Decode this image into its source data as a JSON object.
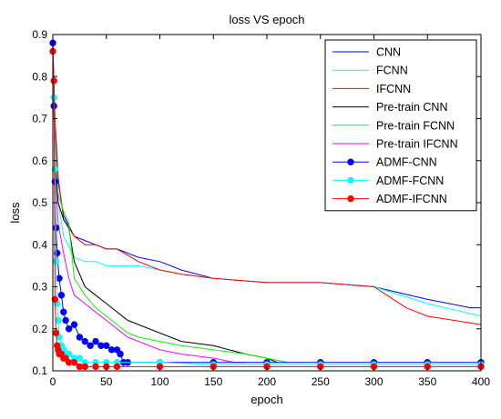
{
  "chart_data": {
    "type": "line",
    "title": "loss VS epoch",
    "xlabel": "epoch",
    "ylabel": "loss",
    "xlim": [
      0,
      400
    ],
    "ylim": [
      0.1,
      0.9
    ],
    "xticks": [
      0,
      50,
      100,
      150,
      200,
      250,
      300,
      350,
      400
    ],
    "yticks": [
      0.1,
      0.2,
      0.3,
      0.4,
      0.5,
      0.6,
      0.7,
      0.8,
      0.9
    ],
    "grid": false,
    "legend_position": "top-right",
    "series": [
      {
        "name": "CNN",
        "color": "#0000ff",
        "marker": "none",
        "x": [
          0,
          2,
          5,
          10,
          20,
          30,
          40,
          50,
          60,
          80,
          100,
          120,
          150,
          200,
          250,
          300,
          350,
          390,
          400
        ],
        "y": [
          0.88,
          0.68,
          0.55,
          0.47,
          0.42,
          0.41,
          0.4,
          0.39,
          0.39,
          0.37,
          0.36,
          0.34,
          0.32,
          0.31,
          0.31,
          0.3,
          0.27,
          0.25,
          0.25
        ]
      },
      {
        "name": "FCNN",
        "color": "#00ffff",
        "marker": "none",
        "x": [
          0,
          2,
          5,
          10,
          20,
          30,
          40,
          50,
          60,
          80,
          100,
          120,
          150,
          200,
          250,
          300,
          350,
          400
        ],
        "y": [
          0.87,
          0.62,
          0.5,
          0.42,
          0.37,
          0.36,
          0.36,
          0.35,
          0.35,
          0.35,
          0.34,
          0.33,
          0.32,
          0.31,
          0.31,
          0.3,
          0.26,
          0.23
        ]
      },
      {
        "name": "IFCNN",
        "color": "#ff0000",
        "marker": "none",
        "x": [
          0,
          2,
          5,
          10,
          20,
          30,
          40,
          50,
          60,
          80,
          100,
          120,
          150,
          200,
          250,
          300,
          330,
          350,
          400
        ],
        "y": [
          0.87,
          0.7,
          0.56,
          0.46,
          0.42,
          0.4,
          0.4,
          0.39,
          0.39,
          0.36,
          0.34,
          0.33,
          0.32,
          0.31,
          0.31,
          0.3,
          0.25,
          0.23,
          0.21
        ]
      },
      {
        "name": "Pre-train CNN",
        "color": "#000000",
        "marker": "none",
        "x": [
          0,
          2,
          5,
          10,
          15,
          20,
          30,
          40,
          50,
          60,
          70,
          80,
          100,
          120,
          150,
          180,
          200,
          210
        ],
        "y": [
          0.88,
          0.6,
          0.5,
          0.46,
          0.44,
          0.36,
          0.3,
          0.28,
          0.26,
          0.24,
          0.22,
          0.21,
          0.19,
          0.17,
          0.16,
          0.14,
          0.13,
          0.12
        ]
      },
      {
        "name": "Pre-train FCNN",
        "color": "#00ff00",
        "marker": "none",
        "x": [
          0,
          2,
          5,
          10,
          15,
          20,
          30,
          40,
          50,
          60,
          70,
          80,
          100,
          120,
          150,
          180,
          200,
          220
        ],
        "y": [
          0.89,
          0.62,
          0.52,
          0.48,
          0.45,
          0.32,
          0.28,
          0.25,
          0.23,
          0.21,
          0.19,
          0.18,
          0.17,
          0.16,
          0.15,
          0.14,
          0.13,
          0.12
        ]
      },
      {
        "name": "Pre-train IFCNN",
        "color": "#ff00ff",
        "marker": "none",
        "x": [
          0,
          2,
          5,
          10,
          15,
          20,
          30,
          40,
          50,
          60,
          70,
          80,
          100,
          120,
          150,
          170,
          180
        ],
        "y": [
          0.88,
          0.58,
          0.45,
          0.38,
          0.32,
          0.28,
          0.26,
          0.24,
          0.22,
          0.2,
          0.18,
          0.17,
          0.15,
          0.14,
          0.13,
          0.12,
          0.12
        ]
      },
      {
        "name": "ADMF-CNN",
        "color": "#0000ff",
        "marker": "circle",
        "x": [
          0,
          1,
          2,
          3,
          4,
          6,
          8,
          10,
          12,
          15,
          20,
          25,
          30,
          35,
          40,
          45,
          50,
          55,
          60,
          63,
          66,
          70,
          100,
          150,
          200,
          250,
          300,
          350,
          400
        ],
        "y": [
          0.88,
          0.73,
          0.55,
          0.44,
          0.38,
          0.32,
          0.28,
          0.24,
          0.22,
          0.2,
          0.21,
          0.18,
          0.17,
          0.16,
          0.17,
          0.16,
          0.16,
          0.15,
          0.15,
          0.14,
          0.12,
          0.12,
          0.12,
          0.12,
          0.12,
          0.12,
          0.12,
          0.12,
          0.12
        ]
      },
      {
        "name": "ADMF-FCNN",
        "color": "#00ffff",
        "marker": "circle",
        "x": [
          0,
          1,
          2,
          3,
          4,
          5,
          6,
          8,
          10,
          12,
          15,
          20,
          25,
          30,
          40,
          50,
          60,
          100,
          150,
          200,
          250,
          300,
          350,
          400
        ],
        "y": [
          0.86,
          0.75,
          0.58,
          0.36,
          0.26,
          0.22,
          0.18,
          0.16,
          0.15,
          0.14,
          0.14,
          0.13,
          0.13,
          0.12,
          0.12,
          0.12,
          0.12,
          0.12,
          0.115,
          0.115,
          0.115,
          0.115,
          0.115,
          0.115
        ]
      },
      {
        "name": "ADMF-IFCNN",
        "color": "#ff0000",
        "marker": "circle",
        "x": [
          0,
          1,
          2,
          3,
          4,
          5,
          6,
          8,
          10,
          12,
          15,
          20,
          25,
          30,
          40,
          50,
          60,
          100,
          150,
          200,
          250,
          300,
          350,
          400
        ],
        "y": [
          0.86,
          0.79,
          0.27,
          0.19,
          0.16,
          0.15,
          0.14,
          0.14,
          0.13,
          0.13,
          0.12,
          0.12,
          0.11,
          0.11,
          0.11,
          0.11,
          0.11,
          0.11,
          0.11,
          0.11,
          0.11,
          0.11,
          0.11,
          0.11
        ]
      }
    ]
  }
}
